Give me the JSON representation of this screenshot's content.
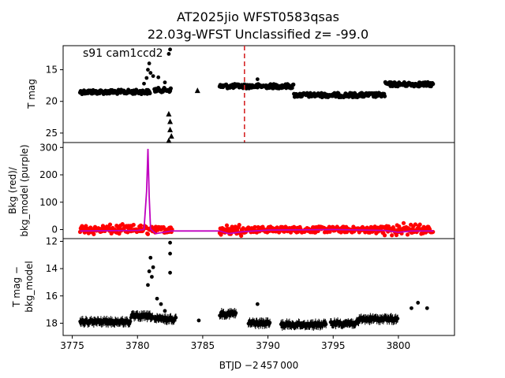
{
  "chart_data": {
    "type": "scatter",
    "title_line1": "AT2025jio  WFST0583qsas",
    "title_line2": "22.03g-WFST Unclassified z= -99.0",
    "xlabel": "BTJD −2 457 000",
    "xlim": [
      3774.3,
      3804.3
    ],
    "xticks": [
      3775,
      3780,
      3785,
      3790,
      3795,
      3800
    ],
    "marker_line": {
      "x": 3788.2,
      "color": "#d62728",
      "style": "dashed"
    },
    "panels": [
      {
        "id": "tmag",
        "ylabel": "T mag",
        "annotation": "s91 cam1ccd2",
        "inverted": true,
        "ylim": [
          26.5,
          11.2
        ],
        "yticks": [
          15,
          20,
          25
        ],
        "series": [
          {
            "color": "#000000",
            "marker": "point",
            "segments": [
              [
                3775.6,
                3781.0,
                18.5
              ],
              [
                3781.3,
                3782.6,
                18.2
              ],
              [
                3786.3,
                3792.0,
                17.6
              ],
              [
                3792.0,
                3799.0,
                19.0
              ],
              [
                3799.0,
                3802.7,
                17.3
              ]
            ]
          },
          {
            "color": "#000000",
            "marker": "point",
            "points": [
              [
                3780.5,
                17.2
              ],
              [
                3780.7,
                16.3
              ],
              [
                3780.8,
                15.0
              ],
              [
                3780.9,
                14.0
              ],
              [
                3781.0,
                15.5
              ],
              [
                3781.2,
                16.0
              ],
              [
                3781.6,
                16.2
              ],
              [
                3782.1,
                17.0
              ],
              [
                3782.4,
                12.5
              ],
              [
                3782.5,
                11.8
              ],
              [
                3789.2,
                16.5
              ],
              [
                3801.2,
                17.3
              ],
              [
                3801.6,
                17.0
              ]
            ]
          },
          {
            "color": "#000000",
            "marker": "triangle",
            "points": [
              [
                3782.4,
                22.0
              ],
              [
                3782.5,
                23.2
              ],
              [
                3782.5,
                24.5
              ],
              [
                3782.6,
                25.5
              ],
              [
                3782.4,
                26.2
              ],
              [
                3784.6,
                18.3
              ]
            ]
          }
        ]
      },
      {
        "id": "bkg",
        "ylabel_line1": "Bkg (red)/",
        "ylabel_line2": "bkg_model (purple)",
        "ylim": [
          -33,
          318
        ],
        "yticks": [
          0,
          100,
          200,
          300
        ],
        "series": [
          {
            "name": "Bkg",
            "color": "#ff0000",
            "marker": "point",
            "segments": [
              [
                3775.6,
                3782.7,
                0
              ],
              [
                3786.3,
                3802.7,
                0
              ]
            ]
          },
          {
            "name": "bkg_model",
            "color": "#bf00bf",
            "marker": "line",
            "points": [
              [
                3775.6,
                -5
              ],
              [
                3780.0,
                -3
              ],
              [
                3780.5,
                0
              ],
              [
                3780.7,
                140
              ],
              [
                3780.8,
                295
              ],
              [
                3780.9,
                120
              ],
              [
                3781.0,
                2
              ],
              [
                3781.4,
                -15
              ],
              [
                3782.6,
                -5
              ],
              [
                3785.0,
                -5
              ],
              [
                3786.3,
                -5
              ],
              [
                3787.0,
                -15
              ],
              [
                3788.0,
                -8
              ],
              [
                3790.0,
                -2
              ],
              [
                3795.0,
                0
              ],
              [
                3799.0,
                -3
              ],
              [
                3800.0,
                -10
              ],
              [
                3801.0,
                -5
              ],
              [
                3802.7,
                -5
              ]
            ]
          }
        ]
      },
      {
        "id": "diff",
        "ylabel_line1": "T mag −",
        "ylabel_line2": "bkg_model",
        "inverted": true,
        "ylim": [
          18.9,
          11.8
        ],
        "yticks": [
          12,
          14,
          16,
          18
        ],
        "series": [
          {
            "color": "#000000",
            "marker": "errorbar",
            "segments": [
              [
                3775.6,
                3779.5,
                17.9
              ],
              [
                3779.5,
                3781.2,
                17.5
              ],
              [
                3781.3,
                3783.0,
                17.7
              ],
              [
                3786.3,
                3787.6,
                17.3
              ],
              [
                3788.5,
                3790.2,
                18.0
              ],
              [
                3791.0,
                3794.5,
                18.1
              ],
              [
                3794.8,
                3797.0,
                18.0
              ],
              [
                3797.0,
                3800.0,
                17.7
              ]
            ]
          },
          {
            "color": "#000000",
            "marker": "point",
            "points": [
              [
                3780.8,
                15.2
              ],
              [
                3780.9,
                14.2
              ],
              [
                3781.0,
                13.2
              ],
              [
                3781.1,
                14.6
              ],
              [
                3781.2,
                13.9
              ],
              [
                3781.5,
                16.2
              ],
              [
                3781.8,
                16.6
              ],
              [
                3782.1,
                17.1
              ],
              [
                3782.5,
                12.9
              ],
              [
                3782.5,
                12.1
              ],
              [
                3782.5,
                14.3
              ],
              [
                3784.7,
                17.8
              ],
              [
                3789.2,
                16.6
              ],
              [
                3801.0,
                16.9
              ],
              [
                3801.5,
                16.5
              ],
              [
                3802.2,
                16.9
              ]
            ]
          }
        ]
      }
    ]
  }
}
